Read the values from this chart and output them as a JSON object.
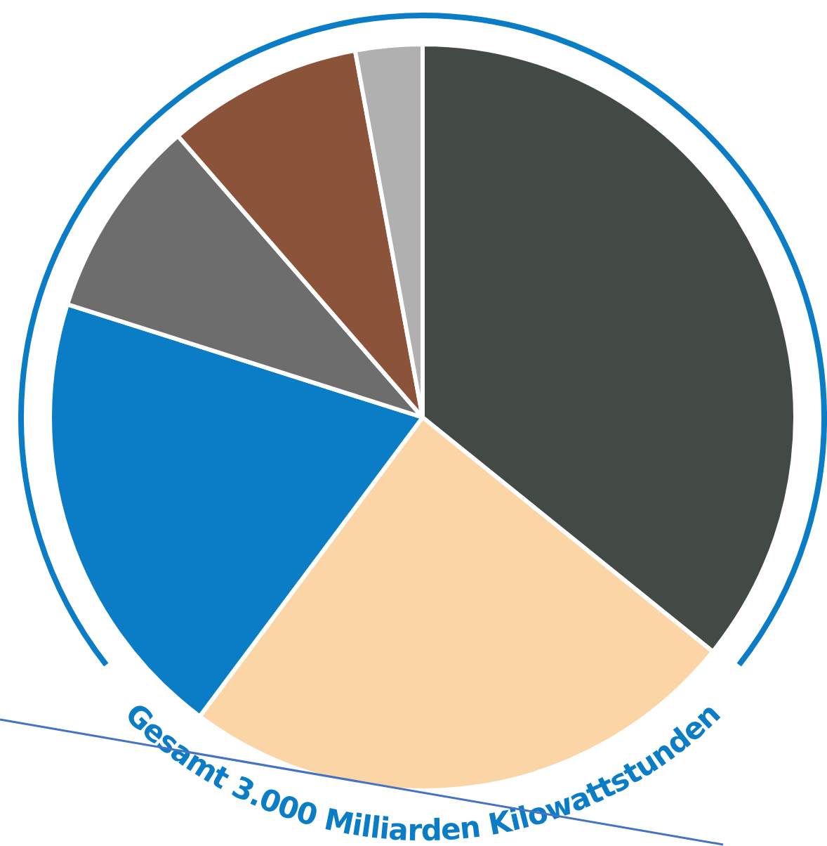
{
  "chart_data": {
    "type": "pie",
    "categories": [
      null,
      null,
      null,
      null,
      null,
      null
    ],
    "values": [
      35.8,
      24.4,
      19.7,
      8.7,
      8.5,
      2.9
    ],
    "colors": [
      "#434a45",
      "#fbd5a5",
      "#0a7dc6",
      "#6e6d6e",
      "#8a533a",
      "#b1b0b1"
    ],
    "annotations": [
      "Gesamt 3.000 Milliarden Kilowattstunden"
    ],
    "legend": false
  }
}
